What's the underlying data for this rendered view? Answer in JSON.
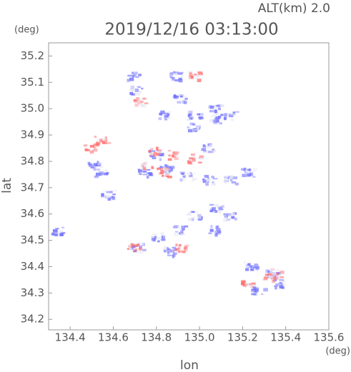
{
  "chart_data": {
    "type": "scatter",
    "title": "ALT(km) 2.0",
    "subtitle": "2019/12/16 03:13:00",
    "y_unit": "(deg)",
    "x_unit": "(deg)",
    "x_label": "lon",
    "y_label": "lat",
    "xlim": [
      134.3,
      135.6
    ],
    "ylim": [
      34.16,
      35.25
    ],
    "xticks": [
      134.4,
      134.6,
      134.8,
      {
        "value": 135,
        "label": "135.0"
      },
      135.2,
      135.4,
      135.6
    ],
    "yticks": [
      34.2,
      34.3,
      34.4,
      34.5,
      34.6,
      34.7,
      34.8,
      34.9,
      {
        "value": 35,
        "label": "35.0"
      },
      35.1,
      35.2
    ],
    "series": [
      {
        "color": "#7070ff",
        "x": [
          134.688,
          134.705,
          134.887,
          134.904,
          134.838,
          134.97,
          135.07,
          135.136,
          135.07,
          134.97,
          134.788,
          134.838,
          134.738,
          134.937,
          135.036,
          135.136,
          135.219,
          135.07,
          134.97,
          134.904,
          134.804,
          134.705,
          134.854,
          135.07,
          135.136,
          135.235,
          135.335,
          135.368,
          135.268,
          134.572,
          135.036,
          134.34,
          134.506,
          134.539
        ],
        "values": [
          35.127,
          35.072,
          35.127,
          35.045,
          34.977,
          34.977,
          34.964,
          34.977,
          35.004,
          34.936,
          34.828,
          34.773,
          34.76,
          34.746,
          34.733,
          34.733,
          34.76,
          34.624,
          34.597,
          34.542,
          34.515,
          34.474,
          34.461,
          34.542,
          34.597,
          34.407,
          34.379,
          34.339,
          34.311,
          34.678,
          34.855,
          34.537,
          34.787,
          34.76
        ]
      },
      {
        "color": "#ff6f6f",
        "x": [
          134.539,
          134.489,
          134.755,
          134.821,
          134.788,
          134.688,
          134.97,
          134.97,
          135.318,
          135.351,
          135.219,
          134.904,
          134.871,
          134.722
        ],
        "values": [
          34.882,
          34.855,
          34.787,
          34.76,
          34.841,
          34.474,
          35.127,
          34.814,
          34.366,
          34.379,
          34.339,
          34.474,
          34.828,
          35.032
        ]
      }
    ]
  }
}
